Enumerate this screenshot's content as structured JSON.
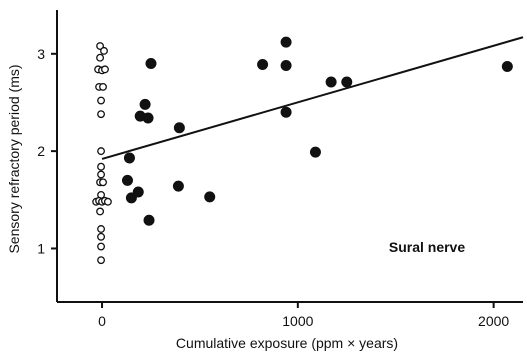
{
  "chart_data": {
    "type": "scatter",
    "xlabel": "Cumulative exposure (ppm × years)",
    "ylabel": "Sensory refractory period (ms)",
    "xlim": [
      -230,
      2150
    ],
    "ylim": [
      0.45,
      3.45
    ],
    "xticks": [
      0,
      1000,
      2000
    ],
    "xtick_labels": [
      "0",
      "1000",
      "2000"
    ],
    "yticks": [
      1,
      2,
      3
    ],
    "ytick_labels": [
      "1",
      "2",
      "3"
    ],
    "annotation": "Sural nerve",
    "grid": false,
    "legend": "none",
    "series": [
      {
        "marker": "open-circle",
        "points": [
          {
            "x": -10,
            "y": 3.08
          },
          {
            "x": 10,
            "y": 3.03
          },
          {
            "x": -10,
            "y": 2.96
          },
          {
            "x": -20,
            "y": 2.84
          },
          {
            "x": 0,
            "y": 2.83
          },
          {
            "x": 15,
            "y": 2.84
          },
          {
            "x": -15,
            "y": 2.66
          },
          {
            "x": 5,
            "y": 2.66
          },
          {
            "x": -5,
            "y": 2.52
          },
          {
            "x": -5,
            "y": 2.38
          },
          {
            "x": -5,
            "y": 2.0
          },
          {
            "x": -5,
            "y": 1.84
          },
          {
            "x": -5,
            "y": 1.76
          },
          {
            "x": -10,
            "y": 1.68
          },
          {
            "x": 5,
            "y": 1.68
          },
          {
            "x": -5,
            "y": 1.55
          },
          {
            "x": -30,
            "y": 1.48
          },
          {
            "x": -15,
            "y": 1.49
          },
          {
            "x": 0,
            "y": 1.48
          },
          {
            "x": 15,
            "y": 1.49
          },
          {
            "x": 30,
            "y": 1.48
          },
          {
            "x": -10,
            "y": 1.38
          },
          {
            "x": -5,
            "y": 1.2
          },
          {
            "x": -5,
            "y": 1.12
          },
          {
            "x": -5,
            "y": 1.02
          },
          {
            "x": -5,
            "y": 0.88
          }
        ]
      },
      {
        "marker": "filled-circle",
        "points": [
          {
            "x": 140,
            "y": 1.93
          },
          {
            "x": 130,
            "y": 1.7
          },
          {
            "x": 150,
            "y": 1.52
          },
          {
            "x": 185,
            "y": 1.58
          },
          {
            "x": 195,
            "y": 2.36
          },
          {
            "x": 220,
            "y": 2.48
          },
          {
            "x": 235,
            "y": 2.34
          },
          {
            "x": 250,
            "y": 2.9
          },
          {
            "x": 240,
            "y": 1.29
          },
          {
            "x": 390,
            "y": 1.64
          },
          {
            "x": 395,
            "y": 2.24
          },
          {
            "x": 550,
            "y": 1.53
          },
          {
            "x": 820,
            "y": 2.89
          },
          {
            "x": 940,
            "y": 3.12
          },
          {
            "x": 940,
            "y": 2.88
          },
          {
            "x": 940,
            "y": 2.4
          },
          {
            "x": 1090,
            "y": 1.99
          },
          {
            "x": 1170,
            "y": 2.71
          },
          {
            "x": 1250,
            "y": 2.71
          },
          {
            "x": 2070,
            "y": 2.87
          }
        ]
      }
    ],
    "regression_line": {
      "x0": 0,
      "y0": 1.92,
      "x1": 2150,
      "y1": 3.17
    }
  }
}
